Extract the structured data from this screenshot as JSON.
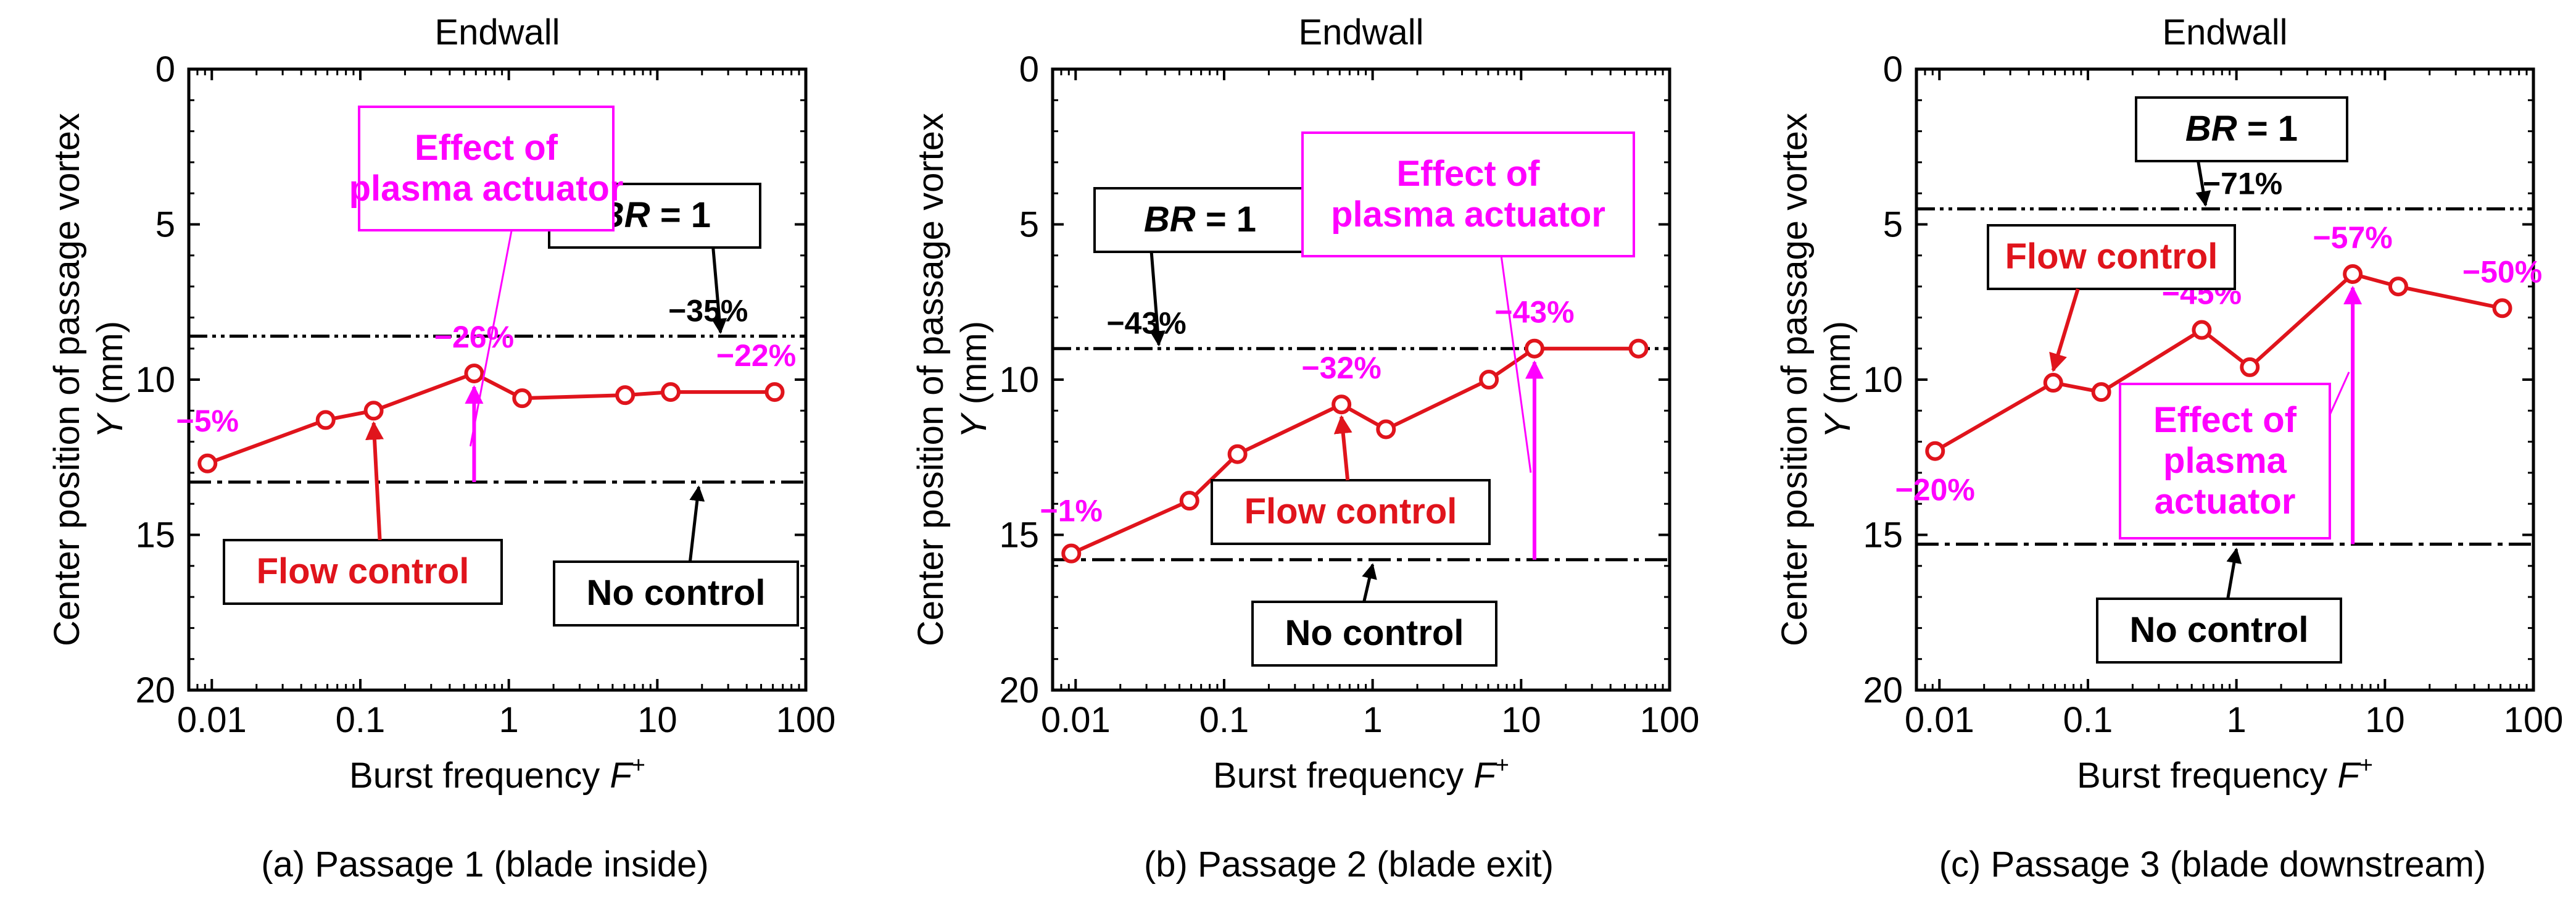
{
  "colors": {
    "data": "#e0141c",
    "effect": "#ff00ff",
    "axis": "#000000",
    "bg": "#ffffff"
  },
  "chart_data": [
    {
      "type": "line",
      "top_label": "Endwall",
      "caption": "(a) Passage 1 (blade inside)",
      "xlabel": "Burst frequency",
      "xlabel_var": "F",
      "xlabel_sup": "+",
      "ylabel_line1": "Center position of passage vortex",
      "ylabel_var": "Y",
      "ylabel_unit": " (mm)",
      "xscale": "log",
      "xlim": [
        0.007,
        100
      ],
      "ylim": [
        0,
        20
      ],
      "y_inverted": true,
      "xticks": [
        0.01,
        0.1,
        1,
        10,
        100
      ],
      "xtick_labels": [
        "0.01",
        "0.1",
        "1",
        "10",
        "100"
      ],
      "yticks": [
        0,
        5,
        10,
        15,
        20
      ],
      "ytick_labels": [
        "0",
        "5",
        "10",
        "15",
        "20"
      ],
      "series": [
        {
          "name": "Flow control",
          "x": [
            0.00935,
            0.0584,
            0.123,
            0.584,
            1.23,
            6.07,
            12.3,
            61.7
          ],
          "y": [
            12.7,
            11.3,
            11.0,
            9.8,
            10.6,
            10.5,
            10.4,
            10.4
          ]
        }
      ],
      "hlines": [
        {
          "name": "BR = 1",
          "y": 8.6,
          "style": "dash-dot-dot"
        },
        {
          "name": "No control",
          "y": 13.3,
          "style": "dash-dot"
        }
      ],
      "annotations": {
        "pct": [
          {
            "text": "−5%",
            "x": 0.00935,
            "color": "effect"
          },
          {
            "text": "−26%",
            "x": 0.584,
            "color": "effect"
          },
          {
            "text": "−22%",
            "x": 61.7,
            "color": "effect"
          },
          {
            "text": "−35%",
            "x": 22,
            "color": "axis"
          }
        ],
        "br_label": {
          "bold": "BR",
          "rest": " = 1"
        },
        "flow_label": "Flow control",
        "nocontrol_label": "No control",
        "effect_lines": [
          "Effect of",
          "plasma actuator"
        ],
        "effect_arrow_x": 0.584
      }
    },
    {
      "type": "line",
      "top_label": "Endwall",
      "caption": "(b) Passage 2 (blade exit)",
      "xlabel": "Burst frequency",
      "xlabel_var": "F",
      "xlabel_sup": "+",
      "ylabel_line1": "Center position of passage vortex",
      "ylabel_var": "Y",
      "ylabel_unit": " (mm)",
      "xscale": "log",
      "xlim": [
        0.007,
        100
      ],
      "ylim": [
        0,
        20
      ],
      "y_inverted": true,
      "xticks": [
        0.01,
        0.1,
        1,
        10,
        100
      ],
      "xtick_labels": [
        "0.01",
        "0.1",
        "1",
        "10",
        "100"
      ],
      "yticks": [
        0,
        5,
        10,
        15,
        20
      ],
      "ytick_labels": [
        "0",
        "5",
        "10",
        "15",
        "20"
      ],
      "series": [
        {
          "name": "Flow control",
          "x": [
            0.00935,
            0.0584,
            0.123,
            0.617,
            1.23,
            6.07,
            12.3,
            61.7
          ],
          "y": [
            15.6,
            13.9,
            12.4,
            10.8,
            11.6,
            10.0,
            9.0,
            9.0
          ]
        }
      ],
      "hlines": [
        {
          "name": "BR = 1",
          "y": 9.0,
          "style": "dash-dot-dot"
        },
        {
          "name": "No control",
          "y": 15.8,
          "style": "dash-dot"
        }
      ],
      "annotations": {
        "pct": [
          {
            "text": "−1%",
            "x": 0.00935,
            "color": "effect"
          },
          {
            "text": "−32%",
            "x": 0.617,
            "color": "effect"
          },
          {
            "text": "−43%",
            "x": 12.3,
            "color": "effect"
          },
          {
            "text": "−43%",
            "x": 0.03,
            "color": "axis"
          }
        ],
        "br_label": {
          "bold": "BR",
          "rest": " = 1"
        },
        "flow_label": "Flow control",
        "nocontrol_label": "No control",
        "effect_lines": [
          "Effect of",
          "plasma actuator"
        ],
        "effect_arrow_x": 12.3
      }
    },
    {
      "type": "line",
      "top_label": "Endwall",
      "caption": "(c) Passage 3 (blade downstream)",
      "xlabel": "Burst frequency",
      "xlabel_var": "F",
      "xlabel_sup": "+",
      "ylabel_line1": "Center position of passage vortex",
      "ylabel_var": "Y",
      "ylabel_unit": " (mm)",
      "xscale": "log",
      "xlim": [
        0.007,
        100
      ],
      "ylim": [
        0,
        20
      ],
      "y_inverted": true,
      "xticks": [
        0.01,
        0.1,
        1,
        10,
        100
      ],
      "xtick_labels": [
        "0.01",
        "0.1",
        "1",
        "10",
        "100"
      ],
      "yticks": [
        0,
        5,
        10,
        15,
        20
      ],
      "ytick_labels": [
        "0",
        "5",
        "10",
        "15",
        "20"
      ],
      "series": [
        {
          "name": "Flow control",
          "x": [
            0.00935,
            0.0584,
            0.123,
            0.584,
            1.23,
            6.07,
            12.3,
            61.7
          ],
          "y": [
            12.3,
            10.1,
            10.4,
            8.4,
            9.6,
            6.6,
            7.0,
            7.7
          ]
        }
      ],
      "hlines": [
        {
          "name": "BR = 1",
          "y": 4.5,
          "style": "dash-dot-dot"
        },
        {
          "name": "No control",
          "y": 15.3,
          "style": "dash-dot"
        }
      ],
      "annotations": {
        "pct": [
          {
            "text": "−20%",
            "x": 0.00935,
            "color": "effect"
          },
          {
            "text": "−45%",
            "x": 0.584,
            "color": "effect"
          },
          {
            "text": "−57%",
            "x": 6.07,
            "color": "effect"
          },
          {
            "text": "−50%",
            "x": 61.7,
            "color": "effect"
          },
          {
            "text": "−71%",
            "x": 1.1,
            "color": "axis"
          }
        ],
        "br_label": {
          "bold": "BR",
          "rest": " = 1"
        },
        "flow_label": "Flow control",
        "nocontrol_label": "No control",
        "effect_lines": [
          "Effect of",
          "plasma",
          "actuator"
        ],
        "effect_arrow_x": 6.07
      }
    }
  ]
}
